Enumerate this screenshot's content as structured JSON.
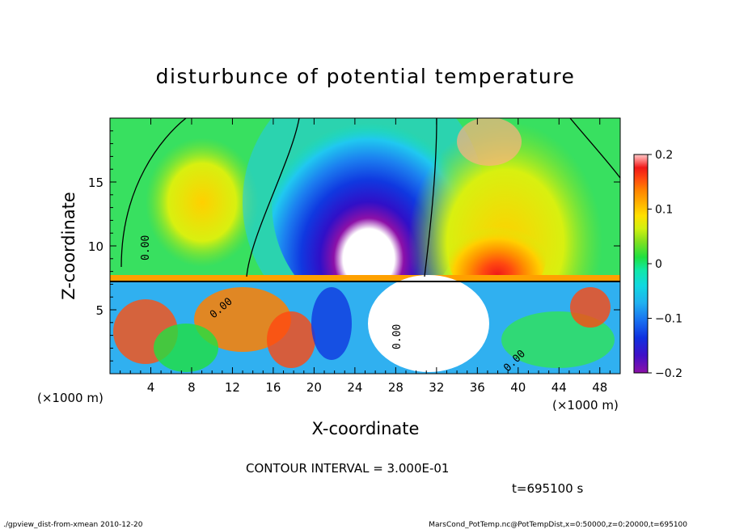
{
  "chart_data": {
    "type": "heatmap",
    "title": "disturbunce of potential temperature",
    "xlabel": "X-coordinate",
    "ylabel": "Z-coordinate",
    "x_unit_left": "(×1000 m)",
    "x_unit_right": "(×1000 m)",
    "xlim": [
      0,
      50
    ],
    "ylim": [
      0,
      20
    ],
    "x_ticks": [
      "4",
      "8",
      "12",
      "16",
      "20",
      "24",
      "28",
      "32",
      "36",
      "40",
      "44",
      "48"
    ],
    "x_tick_values": [
      4,
      8,
      12,
      16,
      20,
      24,
      28,
      32,
      36,
      40,
      44,
      48
    ],
    "y_ticks": [
      "5",
      "10",
      "15"
    ],
    "y_tick_values": [
      5,
      10,
      15
    ],
    "colorbar": {
      "range": [
        -0.2,
        0.2
      ],
      "tick_labels": [
        "0.2",
        "0.1",
        "0",
        "−0.1",
        "−0.2"
      ],
      "tick_values": [
        0.2,
        0.1,
        0,
        -0.1,
        -0.2
      ],
      "colors": [
        "#8c10a8",
        "#4010c8",
        "#1030e0",
        "#1870f0",
        "#20b0f0",
        "#10d8e0",
        "#10e8a8",
        "#20e040",
        "#80e020",
        "#d0f010",
        "#ffe000",
        "#ffb000",
        "#ff8000",
        "#ff4810",
        "#f01818",
        "#ff9090",
        "#ffc8c8"
      ]
    },
    "contour_labels": [
      "0.00",
      "0.00",
      "0.00",
      "0.00"
    ],
    "contour_interval_text": "CONTOUR INTERVAL = 3.000E-01",
    "time_text": "t=695100 s"
  },
  "footer": {
    "left": "./gpview_dist-from-xmean  2010-12-20",
    "right": "MarsCond_PotTemp.nc@PotTempDist,x=0:50000,z=0:20000,t=695100"
  }
}
